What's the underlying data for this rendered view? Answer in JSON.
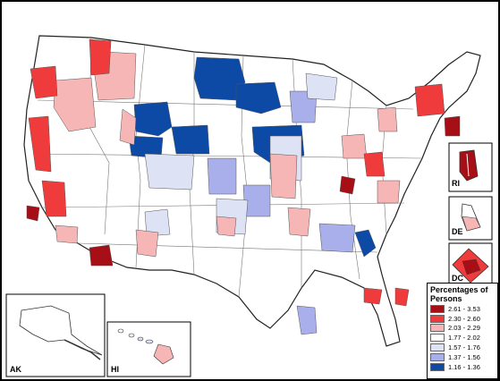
{
  "legend": {
    "title": "Percentages of Persons",
    "items": [
      {
        "label": "2.61 - 3.53",
        "color": "#a50f15"
      },
      {
        "label": "2.30 - 2.60",
        "color": "#ef3b3b"
      },
      {
        "label": "2.03 - 2.29",
        "color": "#f7b6b6"
      },
      {
        "label": "1.77 - 2.02",
        "color": "#ffffff"
      },
      {
        "label": "1.57 - 1.76",
        "color": "#dde2f5"
      },
      {
        "label": "1.37 - 1.56",
        "color": "#a9afea"
      },
      {
        "label": "1.16 - 1.36",
        "color": "#0d4aa5"
      }
    ]
  },
  "insets": {
    "ak": "AK",
    "hi": "HI",
    "ri": "RI",
    "de": "DE",
    "dc": "DC"
  }
}
